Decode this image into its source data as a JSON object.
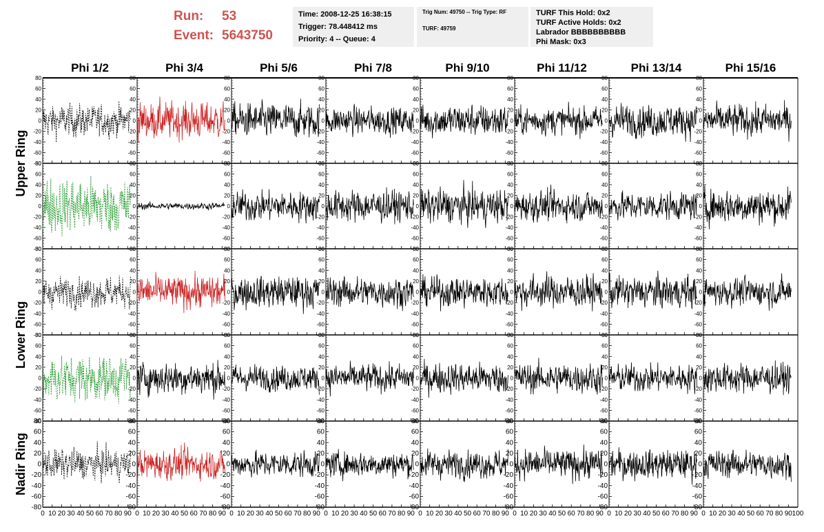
{
  "header": {
    "run_label": "Run:",
    "run_value": "53",
    "event_label": "Event:",
    "event_value": "5643750"
  },
  "info_box_1": {
    "time": "Time: 2008-12-25 16:38:15",
    "trigger": "Trigger: 78.448412 ms",
    "priority": "Priority: 4 -- Queue: 4"
  },
  "info_box_2": {
    "trig": "Trig Num: 49750 -- Trig Type: RF",
    "turf": "TURF: 49759"
  },
  "info_box_3": {
    "this_hold": "TURF This Hold: 0x2",
    "active_holds": "TURF Active Holds: 0x2",
    "labrador": "Labrador BBBBBBBBBB",
    "phi_mask": "Phi Mask: 0x3"
  },
  "colors": {
    "background": "#ffffff",
    "header_red": "#d0524f",
    "info_bg": "#efefef",
    "trace_black": "#000000",
    "trace_red": "#cc2222",
    "trace_green": "#22992a"
  },
  "chart_data": {
    "type": "line",
    "columns": [
      "Phi 1/2",
      "Phi 3/4",
      "Phi 5/6",
      "Phi 7/8",
      "Phi 9/10",
      "Phi 11/12",
      "Phi 13/14",
      "Phi 15/16"
    ],
    "rows": [
      "Upper Ring",
      "Upper Ring",
      "Lower Ring",
      "Lower Ring",
      "Nadir Ring"
    ],
    "row_labels": [
      {
        "label": "Upper Ring",
        "rows": [
          0,
          1
        ]
      },
      {
        "label": "Lower Ring",
        "rows": [
          2,
          3
        ]
      },
      {
        "label": "Nadir Ring",
        "rows": [
          4
        ]
      }
    ],
    "xlim": [
      0,
      100
    ],
    "ylim": [
      -80,
      80
    ],
    "y_ticks": [
      -80,
      -60,
      -40,
      -20,
      0,
      20,
      40,
      60,
      80
    ],
    "x_ticks": [
      0,
      10,
      20,
      30,
      40,
      50,
      60,
      70,
      80,
      90,
      100
    ],
    "x_tick_labels": [
      "0",
      "10",
      "20",
      "30",
      "40",
      "50",
      "60",
      "70",
      "80",
      "90",
      "100"
    ],
    "samples_per_trace": 260,
    "x_range_trace": [
      0,
      93
    ],
    "grid": false,
    "legend": "none",
    "styles": {
      "black_dashed": {
        "color": "#000000",
        "dashed": true
      },
      "red": {
        "color": "#cc2222",
        "dashed": false
      },
      "green_dashed": {
        "color": "#22992a",
        "dashed": true
      },
      "black": {
        "color": "#000000",
        "dashed": false
      }
    },
    "panels": [
      [
        "black_dashed",
        "red",
        "black",
        "black",
        "black",
        "black",
        "black",
        "black"
      ],
      [
        "green_dashed",
        "black",
        "black",
        "black",
        "black",
        "black",
        "black",
        "black"
      ],
      [
        "black_dashed",
        "red",
        "black",
        "black",
        "black",
        "black",
        "black",
        "black"
      ],
      [
        "green_dashed",
        "black",
        "black",
        "black",
        "black",
        "black",
        "black",
        "black"
      ],
      [
        "black_dashed",
        "red",
        "black",
        "black",
        "black",
        "black",
        "black",
        "black"
      ]
    ],
    "amplitudes": [
      [
        14,
        16,
        15,
        12,
        14,
        12,
        14,
        14
      ],
      [
        24,
        3,
        13,
        14,
        15,
        13,
        12,
        15
      ],
      [
        13,
        14,
        14,
        13,
        13,
        14,
        14,
        12
      ],
      [
        20,
        14,
        11,
        12,
        13,
        13,
        12,
        13
      ],
      [
        13,
        13,
        11,
        11,
        12,
        13,
        13,
        12
      ]
    ]
  }
}
